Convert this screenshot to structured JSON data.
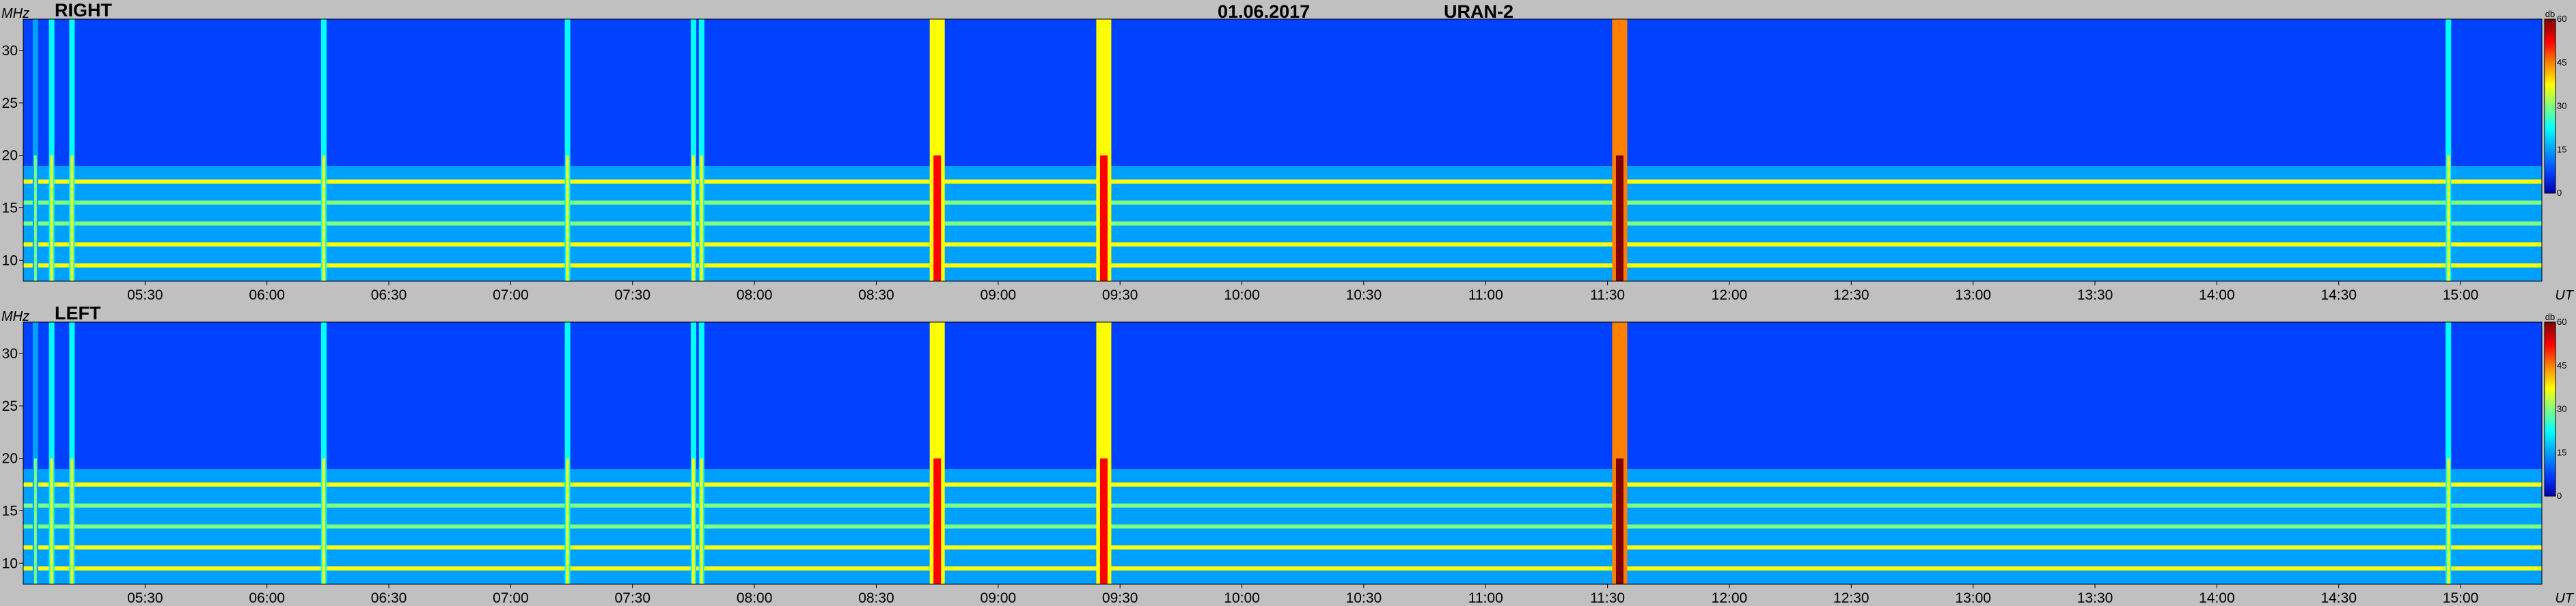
{
  "header": {
    "date": "01.06.2017",
    "instrument": "URAN-2"
  },
  "chart_data": {
    "type": "heatmap",
    "y_unit": "MHz",
    "x_unit": "UT",
    "colorbar_unit": "db",
    "ylim": [
      8,
      33
    ],
    "xlim": [
      "05:00",
      "15:20"
    ],
    "zlim": [
      0,
      60
    ],
    "y_ticks": [
      10,
      15,
      20,
      25,
      30
    ],
    "x_ticks": [
      "05:30",
      "06:00",
      "06:30",
      "07:00",
      "07:30",
      "08:00",
      "08:30",
      "09:00",
      "09:30",
      "10:00",
      "10:30",
      "11:00",
      "11:30",
      "12:00",
      "12:30",
      "13:00",
      "13:30",
      "14:00",
      "14:30",
      "15:00"
    ],
    "colorbar_ticks": [
      0,
      15,
      30,
      45,
      60
    ],
    "colorscale": [
      "#0000b0",
      "#0040ff",
      "#00a0ff",
      "#00ffff",
      "#80ff80",
      "#ffff00",
      "#ff8000",
      "#ff0000",
      "#800000"
    ],
    "panels": [
      {
        "name": "RIGHT"
      },
      {
        "name": "LEFT"
      }
    ],
    "vertical_bursts": [
      {
        "time": "05:03",
        "intensity_db": 30
      },
      {
        "time": "05:07",
        "intensity_db": 36
      },
      {
        "time": "05:12",
        "intensity_db": 40
      },
      {
        "time": "06:14",
        "intensity_db": 34
      },
      {
        "time": "07:14",
        "intensity_db": 36
      },
      {
        "time": "07:45",
        "intensity_db": 40
      },
      {
        "time": "07:47",
        "intensity_db": 34
      },
      {
        "time": "08:45",
        "intensity_db": 52
      },
      {
        "time": "09:26",
        "intensity_db": 50
      },
      {
        "time": "11:33",
        "intensity_db": 58
      },
      {
        "time": "14:57",
        "intensity_db": 34
      }
    ],
    "horizontal_bands": [
      {
        "freq_mhz": 9.5,
        "intensity_db": 38
      },
      {
        "freq_mhz": 11.5,
        "intensity_db": 34
      },
      {
        "freq_mhz": 13.5,
        "intensity_db": 30
      },
      {
        "freq_mhz": 15.5,
        "intensity_db": 28
      },
      {
        "freq_mhz": 17.5,
        "intensity_db": 34
      }
    ]
  }
}
